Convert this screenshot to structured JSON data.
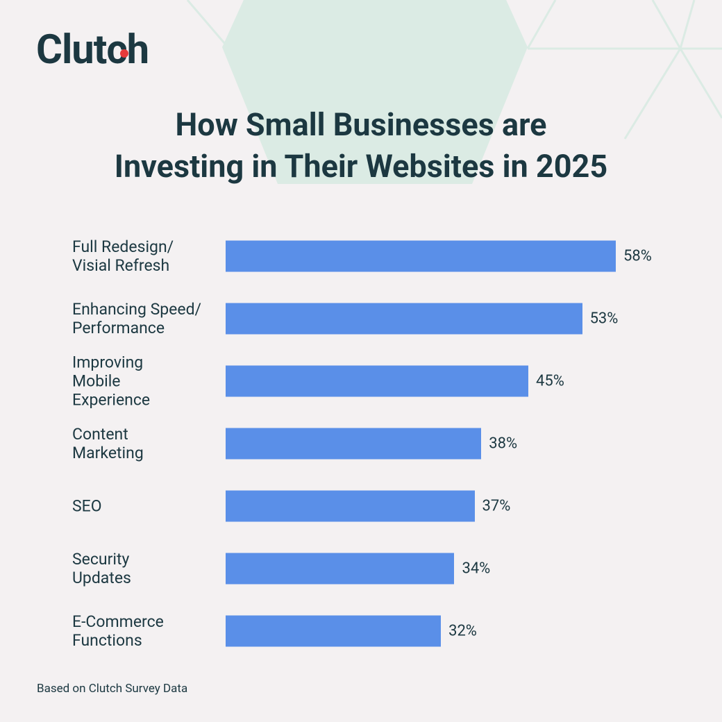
{
  "brand": "Clutch",
  "chart_data": {
    "type": "bar",
    "orientation": "horizontal",
    "title": "How Small Businesses are\nInvesting in Their Websites in  2025",
    "categories": [
      "Full Redesign/\nVisial Refresh",
      "Enhancing Speed/\nPerformance",
      "Improving\nMobile\nExperience",
      "Content\nMarketing",
      "SEO",
      "Security\nUpdates",
      "E-Commerce\nFunctions"
    ],
    "values": [
      58,
      53,
      45,
      38,
      37,
      34,
      32
    ],
    "value_labels": [
      "58%",
      "53%",
      "45%",
      "38%",
      "37%",
      "34%",
      "32%"
    ],
    "color": "#5a8fe8",
    "note": "Based on Clutch Survey Data"
  }
}
